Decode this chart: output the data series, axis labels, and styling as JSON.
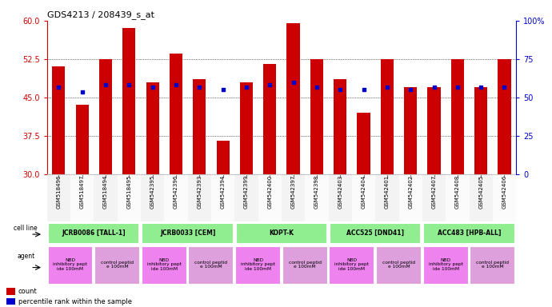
{
  "title": "GDS4213 / 208439_s_at",
  "samples": [
    "GSM518496",
    "GSM518497",
    "GSM518494",
    "GSM518495",
    "GSM542395",
    "GSM542396",
    "GSM542393",
    "GSM542394",
    "GSM542399",
    "GSM542400",
    "GSM542397",
    "GSM542398",
    "GSM542403",
    "GSM542404",
    "GSM542401",
    "GSM542402",
    "GSM542407",
    "GSM542408",
    "GSM542405",
    "GSM542406"
  ],
  "red_values": [
    51.0,
    43.5,
    52.5,
    58.5,
    48.0,
    53.5,
    48.5,
    36.5,
    48.0,
    51.5,
    59.5,
    52.5,
    48.5,
    42.0,
    52.5,
    47.0,
    47.0,
    52.5,
    47.0,
    52.5
  ],
  "blue_values": [
    47.0,
    46.0,
    47.5,
    47.5,
    47.0,
    47.5,
    47.0,
    46.5,
    47.0,
    47.5,
    48.0,
    47.0,
    46.5,
    46.5,
    47.0,
    46.5,
    47.0,
    47.0,
    47.0,
    47.0
  ],
  "ylim_left": [
    30,
    60
  ],
  "ylim_right": [
    0,
    100
  ],
  "yticks_left": [
    30,
    37.5,
    45,
    52.5,
    60
  ],
  "yticks_right": [
    0,
    25,
    50,
    75,
    100
  ],
  "cell_lines": [
    {
      "label": "JCRB0086 [TALL-1]",
      "start": 0,
      "end": 4,
      "color": "#90EE90"
    },
    {
      "label": "JCRB0033 [CEM]",
      "start": 4,
      "end": 8,
      "color": "#90EE90"
    },
    {
      "label": "KOPT-K",
      "start": 8,
      "end": 12,
      "color": "#90EE90"
    },
    {
      "label": "ACC525 [DND41]",
      "start": 12,
      "end": 16,
      "color": "#90EE90"
    },
    {
      "label": "ACC483 [HPB-ALL]",
      "start": 16,
      "end": 20,
      "color": "#90EE90"
    }
  ],
  "agents": [
    {
      "label": "NBD\ninhibitory pept\nide 100mM",
      "start": 0,
      "end": 2,
      "color": "#EE82EE"
    },
    {
      "label": "control peptid\ne 100mM",
      "start": 2,
      "end": 4,
      "color": "#DDA0DD"
    },
    {
      "label": "NBD\ninhibitory pept\nide 100mM",
      "start": 4,
      "end": 6,
      "color": "#EE82EE"
    },
    {
      "label": "control peptid\ne 100mM",
      "start": 6,
      "end": 8,
      "color": "#DDA0DD"
    },
    {
      "label": "NBD\ninhibitory pept\nide 100mM",
      "start": 8,
      "end": 10,
      "color": "#EE82EE"
    },
    {
      "label": "control peptid\ne 100mM",
      "start": 10,
      "end": 12,
      "color": "#DDA0DD"
    },
    {
      "label": "NBD\ninhibitory pept\nide 100mM",
      "start": 12,
      "end": 14,
      "color": "#EE82EE"
    },
    {
      "label": "control peptid\ne 100mM",
      "start": 14,
      "end": 16,
      "color": "#DDA0DD"
    },
    {
      "label": "NBD\ninhibitory pept\nide 100mM",
      "start": 16,
      "end": 18,
      "color": "#EE82EE"
    },
    {
      "label": "control peptid\ne 100mM",
      "start": 18,
      "end": 20,
      "color": "#DDA0DD"
    }
  ],
  "bar_color": "#CC0000",
  "blue_color": "#0000CC",
  "bg_color": "#FFFFFF",
  "left_axis_color": "#CC0000",
  "right_axis_color": "#0000CC",
  "cell_line_gap_color": "#AAAAAA",
  "agent_nbd_color": "#EE82EE",
  "agent_ctrl_color": "#DDA0DD"
}
